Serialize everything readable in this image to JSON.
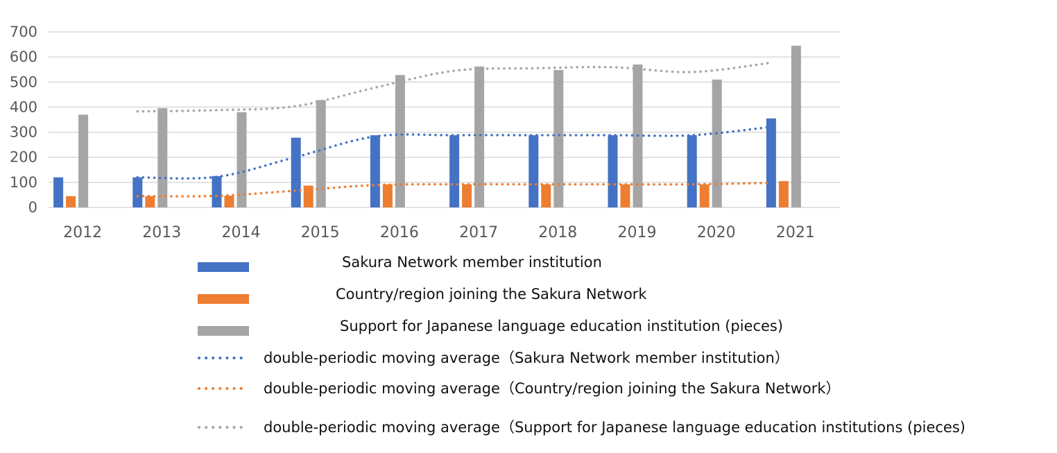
{
  "chart_data": {
    "type": "bar",
    "categories": [
      "2012",
      "2013",
      "2014",
      "2015",
      "2016",
      "2017",
      "2018",
      "2019",
      "2020",
      "2021"
    ],
    "ylim": [
      0,
      700
    ],
    "yticks": [
      0,
      100,
      200,
      300,
      400,
      500,
      600,
      700
    ],
    "grid": true,
    "legend_position": "bottom",
    "series": [
      {
        "name": "Sakura Network member institution",
        "kind": "bar",
        "color": "#4472C4",
        "values": [
          120,
          120,
          125,
          278,
          288,
          288,
          288,
          288,
          288,
          355
        ]
      },
      {
        "name": "Country/region joining the Sakura Network",
        "kind": "bar",
        "color": "#ED7D31",
        "values": [
          45,
          45,
          47,
          87,
          92,
          92,
          92,
          92,
          92,
          105
        ]
      },
      {
        "name": "Support for Japanese language education institution (pieces)",
        "kind": "bar",
        "color": "#A5A5A5",
        "values": [
          370,
          396,
          380,
          428,
          528,
          562,
          548,
          570,
          510,
          645
        ]
      },
      {
        "name": "double-periodic moving average（Sakura Network member institution）",
        "kind": "moving-average",
        "color": "#4472C4",
        "values": [
          null,
          120,
          122,
          201,
          283,
          288,
          288,
          288,
          288,
          321
        ]
      },
      {
        "name": "double-periodic moving average（Country/region joining the Sakura Network）",
        "kind": "moving-average",
        "color": "#ED7D31",
        "values": [
          null,
          45,
          46,
          67,
          89,
          92,
          92,
          92,
          92,
          98
        ]
      },
      {
        "name": "double-periodic moving average（Support for Japanese language education institutions (pieces)",
        "kind": "moving-average",
        "color": "#A5A5A5",
        "values": [
          null,
          383,
          388,
          404,
          478,
          545,
          555,
          559,
          540,
          577
        ]
      }
    ]
  }
}
